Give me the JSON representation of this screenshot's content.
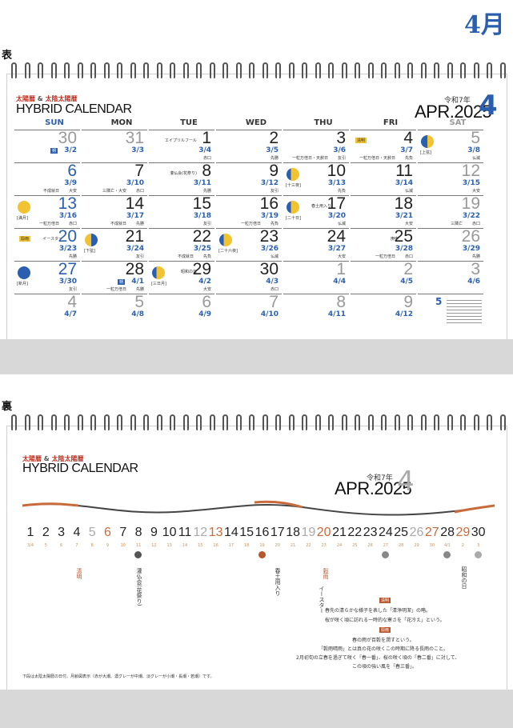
{
  "page": {
    "month_title": "4月",
    "front_label": "表",
    "back_label": "裏"
  },
  "front": {
    "brand_top": "太陽暦",
    "brand_and": "&",
    "brand_top2": "太陰太陽暦",
    "brand_name": "HYBRID CALENDAR",
    "reiwa": "令和7年",
    "apr": "APR.2025",
    "big": "4",
    "dows": [
      "SUN",
      "MON",
      "TUE",
      "WED",
      "THU",
      "FRI",
      "SAT"
    ],
    "weeks": [
      [
        {
          "d": "30",
          "l": "3/2",
          "r": "",
          "grey": true,
          "badge": "朔"
        },
        {
          "d": "31",
          "l": "3/3",
          "r": "",
          "grey": true
        },
        {
          "d": "1",
          "l": "3/4",
          "r": "赤口",
          "ev": "エイプリルフール"
        },
        {
          "d": "2",
          "l": "3/5",
          "r": "先勝"
        },
        {
          "d": "3",
          "l": "3/6",
          "r": "友引",
          "ev2": "一粒万倍日・天赦日"
        },
        {
          "d": "4",
          "l": "3/7",
          "r": "先負",
          "ev2": "一粒万倍日・天赦日",
          "badge2": "清明"
        },
        {
          "d": "5",
          "l": "3/8",
          "r": "仏滅",
          "moonlab": "上弦"
        }
      ],
      [
        {
          "d": "6",
          "l": "3/9",
          "r": "大安",
          "ev2": "不成就日"
        },
        {
          "d": "7",
          "l": "3/10",
          "r": "赤口",
          "ev2": "三隣亡・大安"
        },
        {
          "d": "8",
          "l": "3/11",
          "r": "先勝",
          "ev": "灌仏会(花祭り)"
        },
        {
          "d": "9",
          "l": "3/12",
          "r": "友引"
        },
        {
          "d": "10",
          "l": "3/13",
          "r": "先負",
          "moonlab": "十三夜"
        },
        {
          "d": "11",
          "l": "3/14",
          "r": "仏滅"
        },
        {
          "d": "12",
          "l": "3/15",
          "r": "大安"
        }
      ],
      [
        {
          "d": "13",
          "l": "3/16",
          "r": "赤口",
          "moonlab": "満月",
          "ev2": "一粒万倍日"
        },
        {
          "d": "14",
          "l": "3/17",
          "r": "先勝",
          "ev2": "不成就日"
        },
        {
          "d": "15",
          "l": "3/18",
          "r": "友引"
        },
        {
          "d": "16",
          "l": "3/19",
          "r": "先負",
          "ev2": "一粒万倍日"
        },
        {
          "d": "17",
          "l": "3/20",
          "r": "仏滅",
          "ev": "春土用入り",
          "moonlab": "二十日"
        },
        {
          "d": "18",
          "l": "3/21",
          "r": "大安"
        },
        {
          "d": "19",
          "l": "3/22",
          "r": "赤口",
          "ev2": "三隣亡"
        }
      ],
      [
        {
          "d": "20",
          "l": "3/23",
          "r": "先勝",
          "ev": "イースター",
          "badge2": "穀雨"
        },
        {
          "d": "21",
          "l": "3/24",
          "r": "友引",
          "moonlab": "下弦"
        },
        {
          "d": "22",
          "l": "3/25",
          "r": "先負",
          "ev2": "不成就日"
        },
        {
          "d": "23",
          "l": "3/26",
          "r": "仏滅",
          "moonlab": "二十六夜"
        },
        {
          "d": "24",
          "l": "3/27",
          "r": "大安"
        },
        {
          "d": "25",
          "l": "3/28",
          "r": "赤口",
          "ev": "庚申",
          "ev2": "一粒万倍日"
        },
        {
          "d": "26",
          "l": "3/29",
          "r": "先勝"
        }
      ],
      [
        {
          "d": "27",
          "l": "3/30",
          "r": "友引",
          "moonlab": "新月"
        },
        {
          "d": "28",
          "l": "4/1",
          "r": "先勝",
          "ev2": "一粒万倍日",
          "badge": "朔"
        },
        {
          "d": "29",
          "l": "4/2",
          "r": "大安",
          "ev": "昭和の日",
          "moonlab": "三日月"
        },
        {
          "d": "30",
          "l": "4/3",
          "r": "赤口"
        },
        {
          "d": "1",
          "l": "4/4",
          "r": "",
          "grey": true
        },
        {
          "d": "2",
          "l": "4/5",
          "r": "",
          "grey": true
        },
        {
          "d": "3",
          "l": "4/6",
          "r": "",
          "grey": true
        }
      ],
      [
        {
          "d": "4",
          "l": "4/7",
          "r": "",
          "grey": true
        },
        {
          "d": "5",
          "l": "4/8",
          "r": "",
          "grey": true
        },
        {
          "d": "6",
          "l": "4/9",
          "r": "",
          "grey": true
        },
        {
          "d": "7",
          "l": "4/10",
          "r": "",
          "grey": true
        },
        {
          "d": "8",
          "l": "4/11",
          "r": "",
          "grey": true
        },
        {
          "d": "9",
          "l": "4/12",
          "r": "",
          "grey": true
        },
        {
          "d": "",
          "l": "",
          "r": "",
          "mini": true
        }
      ]
    ],
    "mini_month": "5"
  },
  "back": {
    "brand_top": "太陽暦",
    "brand_and": "&",
    "brand_top2": "太陰太陽暦",
    "brand_name": "HYBRID CALENDAR",
    "reiwa": "令和7年",
    "apr": "APR.2025",
    "big": "4",
    "days": [
      "1",
      "2",
      "3",
      "4",
      "5",
      "6",
      "7",
      "8",
      "9",
      "10",
      "11",
      "12",
      "13",
      "14",
      "15",
      "16",
      "17",
      "18",
      "19",
      "20",
      "21",
      "22",
      "23",
      "24",
      "25",
      "26",
      "27",
      "28",
      "29",
      "30"
    ],
    "lunar": [
      "3/4",
      "5",
      "6",
      "7",
      "8",
      "9",
      "10",
      "11",
      "12",
      "13",
      "14",
      "15",
      "16",
      "17",
      "18",
      "19",
      "20",
      "21",
      "22",
      "23",
      "24",
      "25",
      "26",
      "27",
      "28",
      "29",
      "30",
      "4/1",
      "2",
      "3"
    ],
    "events": {
      "e1": "清明",
      "e2": "灌仏会(花祭り)",
      "e3": "春土用入り",
      "e4": "イースター",
      "e5": "穀雨",
      "e6": "昭和の日"
    },
    "explain": [
      "春先の清らかな様子を表した「清浄明潔」の略。",
      "桜が咲く頃に訪れる一時的な寒さを「花冷え」という。",
      "春の雨が百穀を潤すという。",
      "「穀雨晴雨」とは真の花の咲くこの時期に降る長雨のこと。",
      "2月初旬の立春を過ぎて咲く「春一番」、桜の咲く頃の「春二番」に対して、",
      "この頃の強い風を「春三番」。"
    ],
    "tag1": "清明",
    "tag2": "穀雨",
    "footnote": "下段は太陰太陽暦の日付。月齢図表示（赤が大潮、濃グレーが中潮、淡グレーが小潮・長潮・若潮）です。"
  }
}
